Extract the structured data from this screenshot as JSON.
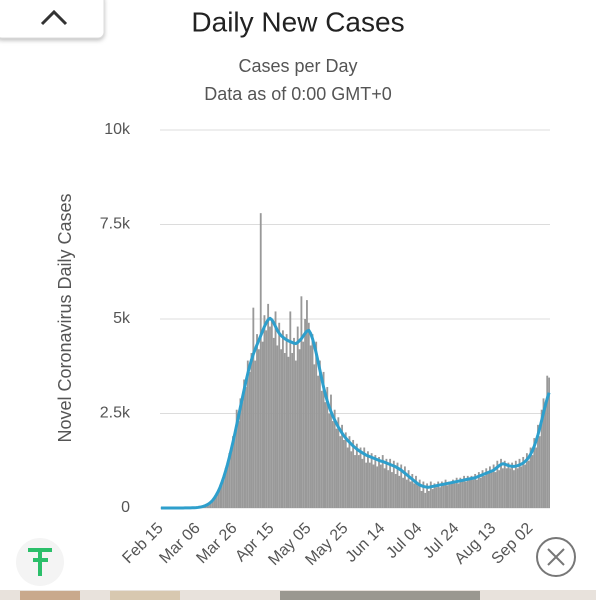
{
  "chart_data": {
    "type": "bar+line",
    "title": "Daily New Cases",
    "subtitle": [
      "Cases per Day",
      "Data as of 0:00 GMT+0"
    ],
    "ylabel": "Novel Coronavirus Daily Cases",
    "categories": [
      "Feb 15",
      null,
      null,
      null,
      null,
      null,
      null,
      null,
      null,
      null,
      null,
      null,
      null,
      null,
      null,
      null,
      null,
      null,
      null,
      null,
      "Mar 06",
      null,
      null,
      null,
      null,
      null,
      null,
      null,
      null,
      null,
      null,
      null,
      null,
      null,
      null,
      null,
      null,
      null,
      null,
      null,
      "Mar 26",
      null,
      null,
      null,
      null,
      null,
      null,
      null,
      null,
      null,
      null,
      null,
      null,
      null,
      null,
      null,
      null,
      null,
      null,
      null,
      "Apr 15",
      null,
      null,
      null,
      null,
      null,
      null,
      null,
      null,
      null,
      null,
      null,
      null,
      null,
      null,
      null,
      null,
      null,
      null,
      null,
      "May 05",
      null,
      null,
      null,
      null,
      null,
      null,
      null,
      null,
      null,
      null,
      null,
      null,
      null,
      null,
      null,
      null,
      null,
      null,
      null,
      "May 25",
      null,
      null,
      null,
      null,
      null,
      null,
      null,
      null,
      null,
      null,
      null,
      null,
      null,
      null,
      null,
      null,
      null,
      null,
      null,
      "Jun 14",
      null,
      null,
      null,
      null,
      null,
      null,
      null,
      null,
      null,
      null,
      null,
      null,
      null,
      null,
      null,
      null,
      null,
      null,
      null,
      "Jul 04",
      null,
      null,
      null,
      null,
      null,
      null,
      null,
      null,
      null,
      null,
      null,
      null,
      null,
      null,
      null,
      null,
      null,
      null,
      null,
      "Jul 24",
      null,
      null,
      null,
      null,
      null,
      null,
      null,
      null,
      null,
      null,
      null,
      null,
      null,
      null,
      null,
      null,
      null,
      null,
      null,
      "Aug 13",
      null,
      null,
      null,
      null,
      null,
      null,
      null,
      null,
      null,
      null,
      null,
      null,
      null,
      null,
      null,
      null,
      null,
      null,
      null,
      "Sep 02",
      null,
      null,
      null,
      null,
      null,
      null,
      null,
      null,
      null,
      null
    ],
    "series": [
      {
        "type": "bar",
        "color": "#999999",
        "values": [
          0,
          0,
          0,
          0,
          0,
          0,
          0,
          0,
          0,
          0,
          1,
          0,
          2,
          1,
          3,
          2,
          4,
          6,
          8,
          12,
          14,
          25,
          30,
          50,
          60,
          90,
          110,
          170,
          200,
          300,
          340,
          480,
          520,
          720,
          800,
          1050,
          1100,
          1450,
          1500,
          1900,
          1900,
          2600,
          2300,
          2900,
          2800,
          3400,
          3200,
          3900,
          3600,
          4100,
          5300,
          3900,
          4600,
          4200,
          7800,
          4400,
          5100,
          4700,
          5400,
          4800,
          5000,
          4500,
          5200,
          4300,
          4900,
          4200,
          4700,
          4100,
          4600,
          4000,
          5200,
          4100,
          4500,
          3900,
          4800,
          4200,
          5600,
          4400,
          5000,
          5500,
          4900,
          4300,
          4600,
          3800,
          4400,
          3500,
          3900,
          3100,
          3600,
          2800,
          3200,
          2500,
          3000,
          2300,
          2600,
          2100,
          2400,
          1900,
          2200,
          1800,
          2000,
          1600,
          1900,
          1500,
          1800,
          1400,
          1700,
          1400,
          1600,
          1300,
          1600,
          1200,
          1500,
          1200,
          1450,
          1150,
          1400,
          1100,
          1350,
          1150,
          1400,
          1050,
          1300,
          1000,
          1300,
          950,
          1250,
          900,
          1200,
          850,
          1150,
          800,
          1100,
          750,
          1000,
          700,
          900,
          650,
          850,
          600,
          750,
          450,
          700,
          400,
          650,
          450,
          700,
          500,
          650,
          550,
          700,
          550,
          700,
          600,
          750,
          600,
          700,
          650,
          750,
          650,
          800,
          650,
          800,
          700,
          850,
          700,
          850,
          750,
          850,
          750,
          900,
          750,
          950,
          800,
          1000,
          850,
          1050,
          900,
          1100,
          950,
          1150,
          950,
          1250,
          1000,
          1300,
          1050,
          1250,
          1050,
          1200,
          1050,
          1200,
          1000,
          1250,
          1050,
          1300,
          1100,
          1350,
          1150,
          1450,
          1250,
          1600,
          1400,
          1850,
          1600,
          2200,
          1900,
          2600,
          2900,
          2700,
          3500,
          3450
        ]
      },
      {
        "type": "line",
        "color": "#2e9fcc",
        "values": [
          0,
          0,
          0,
          0,
          0,
          0,
          0,
          0,
          0,
          0,
          1,
          1,
          1,
          2,
          2,
          3,
          4,
          5,
          7,
          10,
          15,
          22,
          32,
          45,
          62,
          85,
          115,
          155,
          205,
          270,
          350,
          440,
          550,
          680,
          820,
          980,
          1150,
          1340,
          1540,
          1750,
          1970,
          2200,
          2430,
          2670,
          2900,
          3130,
          3350,
          3560,
          3750,
          3920,
          4070,
          4200,
          4320,
          4440,
          4560,
          4680,
          4800,
          4900,
          4980,
          5020,
          4980,
          4900,
          4800,
          4700,
          4620,
          4560,
          4520,
          4480,
          4450,
          4420,
          4400,
          4380,
          4360,
          4350,
          4380,
          4430,
          4480,
          4550,
          4620,
          4680,
          4700,
          4620,
          4480,
          4300,
          4100,
          3880,
          3650,
          3420,
          3200,
          3000,
          2830,
          2680,
          2550,
          2430,
          2330,
          2230,
          2140,
          2060,
          1980,
          1910,
          1850,
          1790,
          1740,
          1690,
          1640,
          1600,
          1560,
          1520,
          1490,
          1460,
          1430,
          1400,
          1380,
          1360,
          1340,
          1320,
          1300,
          1280,
          1260,
          1240,
          1230,
          1210,
          1190,
          1170,
          1150,
          1130,
          1110,
          1090,
          1060,
          1030,
          1000,
          960,
          920,
          880,
          840,
          800,
          760,
          720,
          680,
          640,
          610,
          590,
          570,
          560,
          550,
          550,
          560,
          570,
          580,
          590,
          600,
          610,
          620,
          630,
          640,
          650,
          660,
          670,
          680,
          690,
          700,
          710,
          720,
          730,
          740,
          750,
          760,
          770,
          780,
          790,
          800,
          820,
          840,
          860,
          880,
          900,
          920,
          940,
          960,
          980,
          1000,
          1040,
          1080,
          1120,
          1150,
          1170,
          1160,
          1140,
          1120,
          1110,
          1100,
          1100,
          1110,
          1120,
          1140,
          1160,
          1190,
          1230,
          1280,
          1340,
          1420,
          1520,
          1640,
          1780,
          1940,
          2120,
          2320,
          2520,
          2720,
          2900,
          3050
        ]
      }
    ],
    "ylim": [
      0,
      10000
    ],
    "yticks": [
      0,
      {
        "value": 2500,
        "label": "2.5k"
      },
      {
        "value": 5000,
        "label": "5k"
      },
      {
        "value": 7500,
        "label": "7.5k"
      },
      {
        "value": 10000,
        "label": "10k"
      }
    ],
    "grid": true
  }
}
